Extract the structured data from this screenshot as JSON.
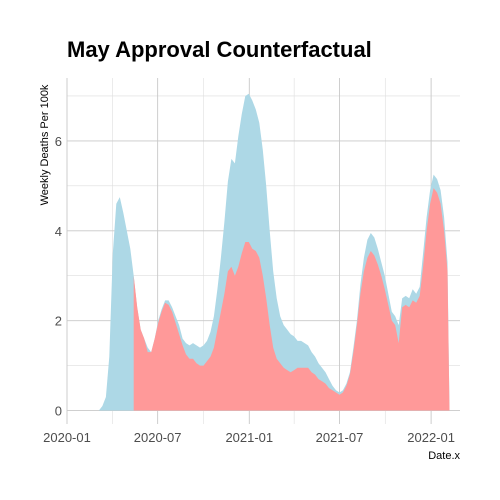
{
  "chart_data": {
    "type": "area",
    "title": "May Approval Counterfactual",
    "xlabel": "Date.x",
    "ylabel": "Weekly Deaths Per 100k",
    "x_ticks": [
      "2020-01",
      "2020-07",
      "2021-01",
      "2021-07",
      "2022-01"
    ],
    "y_ticks": [
      0,
      2,
      4,
      6
    ],
    "xlim": [
      "2020-01-01",
      "2022-02-28"
    ],
    "ylim": [
      -0.3,
      7.4
    ],
    "grid": true,
    "legend": "none",
    "colors": {
      "total": "#add8e6",
      "counterfactual": "#ff9999"
    },
    "series": [
      {
        "color": "#add8e6",
        "points": [
          [
            "2020-03-05",
            0
          ],
          [
            "2020-03-12",
            0.1
          ],
          [
            "2020-03-19",
            0.3
          ],
          [
            "2020-03-26",
            1.2
          ],
          [
            "2020-04-02",
            3.5
          ],
          [
            "2020-04-09",
            4.6
          ],
          [
            "2020-04-16",
            4.75
          ],
          [
            "2020-04-23",
            4.4
          ],
          [
            "2020-04-30",
            4.0
          ],
          [
            "2020-05-07",
            3.6
          ],
          [
            "2020-05-14",
            3.0
          ],
          [
            "2020-05-21",
            2.3
          ],
          [
            "2020-05-28",
            1.8
          ],
          [
            "2020-06-04",
            1.6
          ],
          [
            "2020-06-11",
            1.4
          ],
          [
            "2020-06-18",
            1.3
          ],
          [
            "2020-06-25",
            1.6
          ],
          [
            "2020-07-02",
            2.0
          ],
          [
            "2020-07-09",
            2.25
          ],
          [
            "2020-07-16",
            2.45
          ],
          [
            "2020-07-23",
            2.45
          ],
          [
            "2020-07-30",
            2.3
          ],
          [
            "2020-08-06",
            2.1
          ],
          [
            "2020-08-13",
            1.9
          ],
          [
            "2020-08-20",
            1.6
          ],
          [
            "2020-08-27",
            1.5
          ],
          [
            "2020-09-03",
            1.45
          ],
          [
            "2020-09-10",
            1.5
          ],
          [
            "2020-09-17",
            1.45
          ],
          [
            "2020-09-24",
            1.4
          ],
          [
            "2020-10-01",
            1.45
          ],
          [
            "2020-10-08",
            1.55
          ],
          [
            "2020-10-15",
            1.75
          ],
          [
            "2020-10-22",
            2.1
          ],
          [
            "2020-10-29",
            2.7
          ],
          [
            "2020-11-05",
            3.4
          ],
          [
            "2020-11-12",
            4.2
          ],
          [
            "2020-11-19",
            5.1
          ],
          [
            "2020-11-26",
            5.6
          ],
          [
            "2020-12-03",
            5.5
          ],
          [
            "2020-12-10",
            6.1
          ],
          [
            "2020-12-17",
            6.6
          ],
          [
            "2020-12-24",
            7.0
          ],
          [
            "2020-12-31",
            7.05
          ],
          [
            "2021-01-07",
            6.9
          ],
          [
            "2021-01-14",
            6.7
          ],
          [
            "2021-01-21",
            6.4
          ],
          [
            "2021-01-28",
            5.8
          ],
          [
            "2021-02-04",
            5.0
          ],
          [
            "2021-02-11",
            4.0
          ],
          [
            "2021-02-18",
            3.1
          ],
          [
            "2021-02-25",
            2.5
          ],
          [
            "2021-03-04",
            2.1
          ],
          [
            "2021-03-11",
            1.9
          ],
          [
            "2021-03-18",
            1.8
          ],
          [
            "2021-03-25",
            1.7
          ],
          [
            "2021-04-01",
            1.65
          ],
          [
            "2021-04-08",
            1.55
          ],
          [
            "2021-04-15",
            1.55
          ],
          [
            "2021-04-22",
            1.5
          ],
          [
            "2021-04-29",
            1.45
          ],
          [
            "2021-05-06",
            1.3
          ],
          [
            "2021-05-13",
            1.2
          ],
          [
            "2021-05-20",
            1.05
          ],
          [
            "2021-05-27",
            0.95
          ],
          [
            "2021-06-03",
            0.85
          ],
          [
            "2021-06-10",
            0.7
          ],
          [
            "2021-06-17",
            0.55
          ],
          [
            "2021-06-24",
            0.45
          ],
          [
            "2021-07-01",
            0.4
          ],
          [
            "2021-07-08",
            0.45
          ],
          [
            "2021-07-15",
            0.6
          ],
          [
            "2021-07-22",
            0.85
          ],
          [
            "2021-07-29",
            1.4
          ],
          [
            "2021-08-05",
            2.0
          ],
          [
            "2021-08-12",
            2.8
          ],
          [
            "2021-08-19",
            3.4
          ],
          [
            "2021-08-26",
            3.8
          ],
          [
            "2021-09-02",
            3.95
          ],
          [
            "2021-09-09",
            3.85
          ],
          [
            "2021-09-16",
            3.6
          ],
          [
            "2021-09-23",
            3.3
          ],
          [
            "2021-09-30",
            3.0
          ],
          [
            "2021-10-07",
            2.6
          ],
          [
            "2021-10-14",
            2.2
          ],
          [
            "2021-10-21",
            2.1
          ],
          [
            "2021-10-28",
            1.9
          ],
          [
            "2021-11-04",
            2.5
          ],
          [
            "2021-11-11",
            2.55
          ],
          [
            "2021-11-18",
            2.5
          ],
          [
            "2021-11-25",
            2.7
          ],
          [
            "2021-12-02",
            2.6
          ],
          [
            "2021-12-09",
            2.75
          ],
          [
            "2021-12-16",
            3.5
          ],
          [
            "2021-12-23",
            4.3
          ],
          [
            "2021-12-30",
            4.9
          ],
          [
            "2022-01-06",
            5.25
          ],
          [
            "2022-01-13",
            5.15
          ],
          [
            "2022-01-20",
            4.9
          ],
          [
            "2022-01-27",
            4.3
          ],
          [
            "2022-02-03",
            3.3
          ],
          [
            "2022-02-07",
            0
          ]
        ]
      },
      {
        "color": "#ff9999",
        "points": [
          [
            "2020-05-14",
            0
          ],
          [
            "2020-05-14",
            3.0
          ],
          [
            "2020-05-21",
            2.3
          ],
          [
            "2020-05-28",
            1.8
          ],
          [
            "2020-06-04",
            1.6
          ],
          [
            "2020-06-11",
            1.3
          ],
          [
            "2020-06-18",
            1.3
          ],
          [
            "2020-06-25",
            1.6
          ],
          [
            "2020-07-02",
            1.95
          ],
          [
            "2020-07-09",
            2.2
          ],
          [
            "2020-07-16",
            2.4
          ],
          [
            "2020-07-23",
            2.35
          ],
          [
            "2020-07-30",
            2.2
          ],
          [
            "2020-08-06",
            1.95
          ],
          [
            "2020-08-13",
            1.7
          ],
          [
            "2020-08-20",
            1.45
          ],
          [
            "2020-08-27",
            1.25
          ],
          [
            "2020-09-03",
            1.15
          ],
          [
            "2020-09-10",
            1.15
          ],
          [
            "2020-09-17",
            1.05
          ],
          [
            "2020-09-24",
            1.0
          ],
          [
            "2020-10-01",
            1.0
          ],
          [
            "2020-10-08",
            1.1
          ],
          [
            "2020-10-15",
            1.2
          ],
          [
            "2020-10-22",
            1.4
          ],
          [
            "2020-10-29",
            1.8
          ],
          [
            "2020-11-05",
            2.2
          ],
          [
            "2020-11-12",
            2.6
          ],
          [
            "2020-11-19",
            3.1
          ],
          [
            "2020-11-26",
            3.2
          ],
          [
            "2020-12-03",
            3.0
          ],
          [
            "2020-12-10",
            3.2
          ],
          [
            "2020-12-17",
            3.5
          ],
          [
            "2020-12-24",
            3.75
          ],
          [
            "2020-12-31",
            3.75
          ],
          [
            "2021-01-07",
            3.6
          ],
          [
            "2021-01-14",
            3.55
          ],
          [
            "2021-01-21",
            3.4
          ],
          [
            "2021-01-28",
            3.0
          ],
          [
            "2021-02-04",
            2.5
          ],
          [
            "2021-02-11",
            1.9
          ],
          [
            "2021-02-18",
            1.4
          ],
          [
            "2021-02-25",
            1.15
          ],
          [
            "2021-03-04",
            1.05
          ],
          [
            "2021-03-11",
            0.95
          ],
          [
            "2021-03-18",
            0.9
          ],
          [
            "2021-03-25",
            0.85
          ],
          [
            "2021-04-01",
            0.9
          ],
          [
            "2021-04-08",
            0.95
          ],
          [
            "2021-04-15",
            0.95
          ],
          [
            "2021-04-22",
            0.95
          ],
          [
            "2021-04-29",
            0.95
          ],
          [
            "2021-05-06",
            0.85
          ],
          [
            "2021-05-13",
            0.8
          ],
          [
            "2021-05-20",
            0.7
          ],
          [
            "2021-05-27",
            0.65
          ],
          [
            "2021-06-03",
            0.6
          ],
          [
            "2021-06-10",
            0.5
          ],
          [
            "2021-06-17",
            0.45
          ],
          [
            "2021-06-24",
            0.4
          ],
          [
            "2021-07-01",
            0.35
          ],
          [
            "2021-07-08",
            0.4
          ],
          [
            "2021-07-15",
            0.55
          ],
          [
            "2021-07-22",
            0.8
          ],
          [
            "2021-07-29",
            1.3
          ],
          [
            "2021-08-05",
            1.9
          ],
          [
            "2021-08-12",
            2.6
          ],
          [
            "2021-08-19",
            3.1
          ],
          [
            "2021-08-26",
            3.4
          ],
          [
            "2021-09-02",
            3.55
          ],
          [
            "2021-09-09",
            3.45
          ],
          [
            "2021-09-16",
            3.25
          ],
          [
            "2021-09-23",
            3.0
          ],
          [
            "2021-09-30",
            2.7
          ],
          [
            "2021-10-07",
            2.35
          ],
          [
            "2021-10-14",
            2.0
          ],
          [
            "2021-10-21",
            1.9
          ],
          [
            "2021-10-28",
            1.5
          ],
          [
            "2021-11-04",
            2.3
          ],
          [
            "2021-11-11",
            2.35
          ],
          [
            "2021-11-18",
            2.3
          ],
          [
            "2021-11-25",
            2.45
          ],
          [
            "2021-12-02",
            2.4
          ],
          [
            "2021-12-09",
            2.55
          ],
          [
            "2021-12-16",
            3.2
          ],
          [
            "2021-12-23",
            4.0
          ],
          [
            "2021-12-30",
            4.6
          ],
          [
            "2022-01-06",
            4.95
          ],
          [
            "2022-01-13",
            4.85
          ],
          [
            "2022-01-20",
            4.6
          ],
          [
            "2022-01-27",
            4.0
          ],
          [
            "2022-02-03",
            3.1
          ],
          [
            "2022-02-07",
            0
          ]
        ]
      }
    ]
  }
}
